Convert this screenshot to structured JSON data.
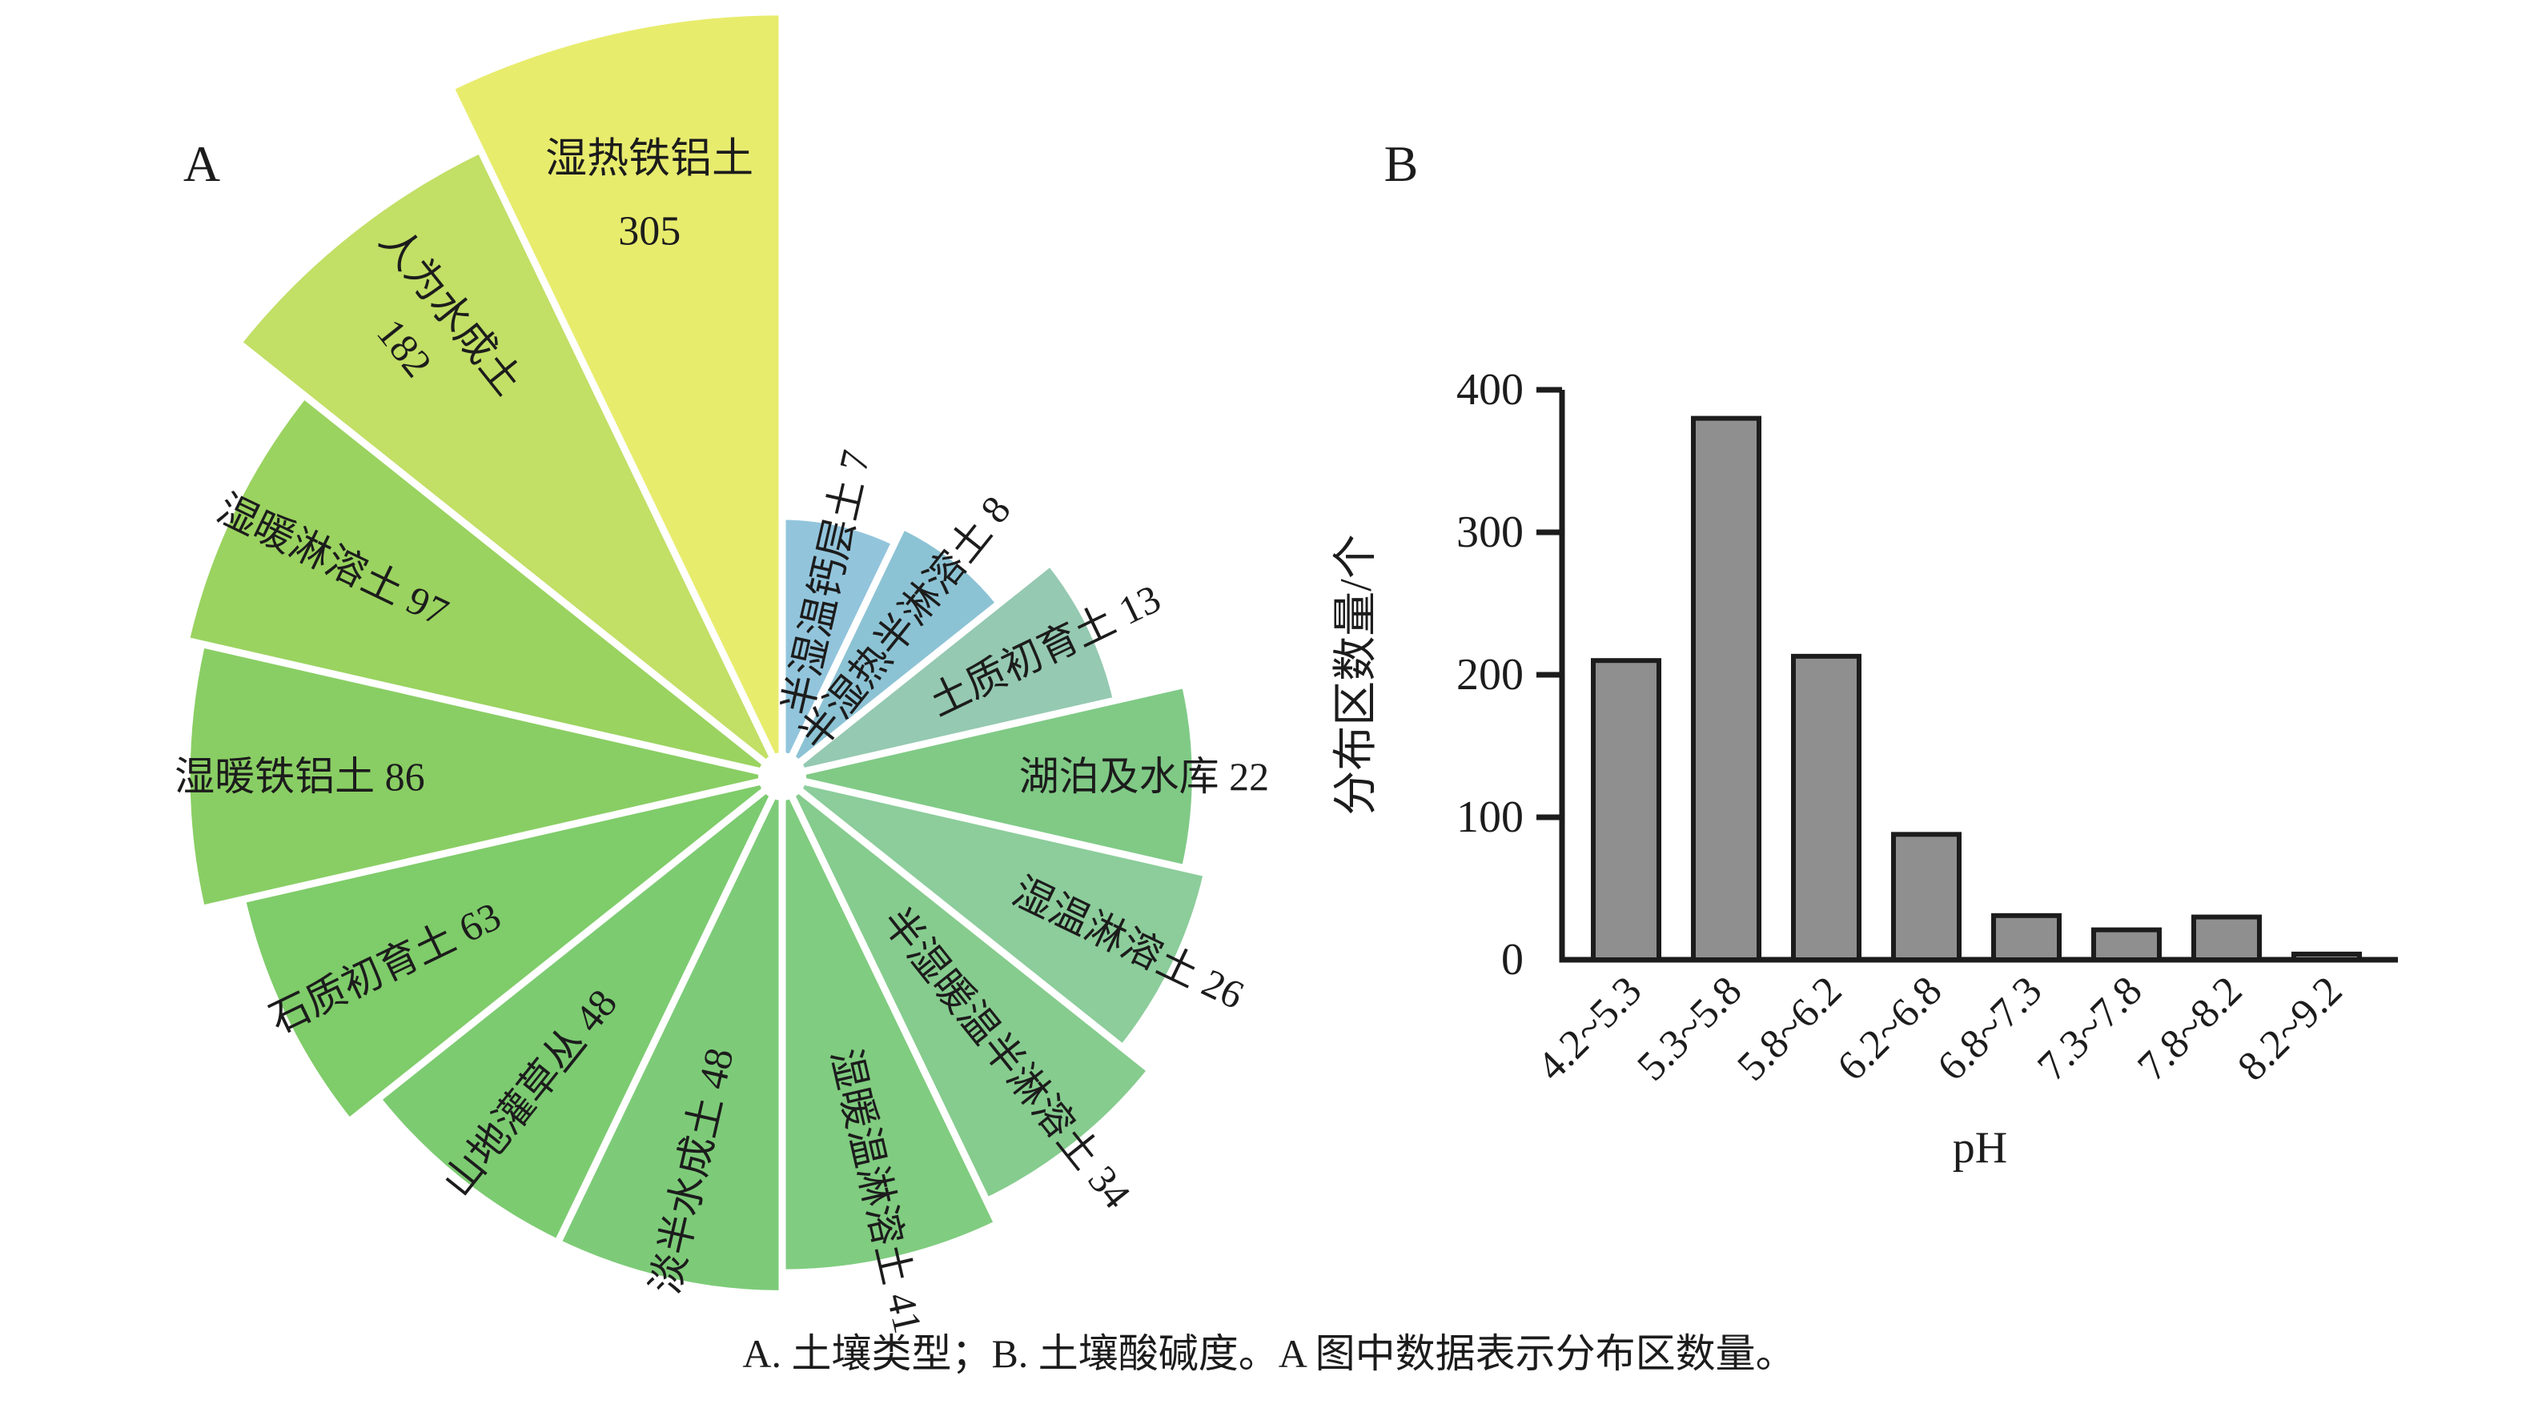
{
  "panels": {
    "a": {
      "letter": "A"
    },
    "b": {
      "letter": "B"
    }
  },
  "caption": "A. 土壤类型；B. 土壤酸碱度。A 图中数据表示分布区数量。",
  "chart_data": [
    {
      "type": "rose",
      "title": "土壤类型",
      "value_meaning": "分布区数量",
      "start_bearing_deg": 0,
      "direction": "clockwise",
      "radius_scale": "log",
      "segments": [
        {
          "label": "半湿温钙层土",
          "value": 7,
          "color": "#92C5DC",
          "label_style": "radial"
        },
        {
          "label": "半湿热半淋溶土",
          "value": 8,
          "color": "#8CC3D4",
          "label_style": "radial"
        },
        {
          "label": "土质初育土",
          "value": 13,
          "color": "#95C9B1",
          "label_style": "radial"
        },
        {
          "label": "湖泊及水库",
          "value": 22,
          "color": "#80CA86",
          "label_style": "radial"
        },
        {
          "label": "湿温淋溶土",
          "value": 26,
          "color": "#8CCD9B",
          "label_style": "radial"
        },
        {
          "label": "半湿暖温半淋溶土",
          "value": 34,
          "color": "#86CC8E",
          "label_style": "radial"
        },
        {
          "label": "湿暖温淋溶土",
          "value": 41,
          "color": "#80CC80",
          "label_style": "radial"
        },
        {
          "label": "淡半水成土",
          "value": 48,
          "color": "#7DCB78",
          "label_style": "radial"
        },
        {
          "label": "山地灌草丛",
          "value": 48,
          "color": "#7CCB71",
          "label_style": "radial"
        },
        {
          "label": "石质初育土",
          "value": 63,
          "color": "#7FCC6A",
          "label_style": "radial"
        },
        {
          "label": "湿暖铁铝土",
          "value": 86,
          "color": "#89CE64",
          "label_style": "radial"
        },
        {
          "label": "湿暖淋溶土",
          "value": 97,
          "color": "#9AD360",
          "label_style": "radial"
        },
        {
          "label": "人为水成土",
          "value": 182,
          "color": "#C2DF66",
          "label_style": "two-line-radial"
        },
        {
          "label": "湿热铁铝土",
          "value": 305,
          "color": "#E8EC6D",
          "label_style": "two-line-horizontal"
        }
      ]
    },
    {
      "type": "bar",
      "categories": [
        "4.2~5.3",
        "5.3~5.8",
        "5.8~6.2",
        "6.2~6.8",
        "6.8~7.3",
        "7.3~7.8",
        "7.8~8.2",
        "8.2~9.2"
      ],
      "values": [
        210,
        380,
        213,
        88,
        31,
        21,
        30,
        4
      ],
      "xlabel": "pH",
      "ylabel": "分布区数量/个",
      "ylim": [
        0,
        400
      ],
      "yticks": [
        0,
        100,
        200,
        300,
        400
      ],
      "bar_fill": "#8F8F8F",
      "bar_stroke": "#1C1C1C",
      "grid": false,
      "legend": "none"
    }
  ]
}
